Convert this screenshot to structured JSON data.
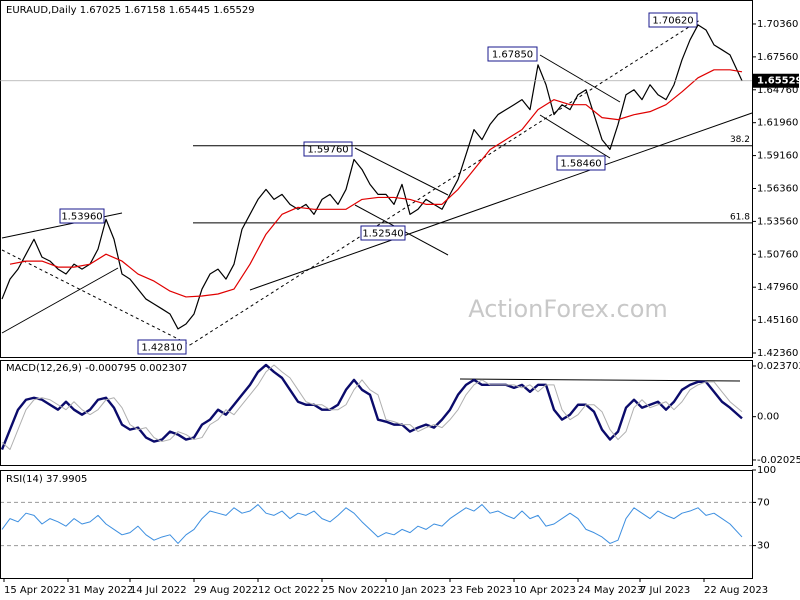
{
  "chart_data": [
    {
      "type": "line",
      "title": "EURAUD,Daily  1.67025 1.67158 1.65445 1.65529",
      "x": [
        0,
        4,
        8,
        12,
        16,
        20,
        24,
        28,
        32,
        36,
        40,
        44,
        48,
        52,
        56,
        60,
        64,
        68,
        72,
        76,
        80,
        84,
        88,
        92,
        96,
        100,
        104,
        108,
        112,
        116,
        120,
        124,
        128,
        132,
        136,
        140,
        144,
        148,
        152,
        156,
        160,
        164,
        168,
        172,
        176,
        180,
        184,
        188,
        192,
        196,
        200,
        204,
        208,
        212,
        216,
        220,
        224,
        228,
        232,
        236,
        240,
        244,
        248,
        252,
        256,
        260,
        264,
        268,
        272,
        276,
        280,
        284,
        288,
        292,
        296,
        300,
        304,
        308,
        312,
        316,
        320,
        324,
        328,
        332,
        336,
        340,
        344,
        348,
        352,
        356,
        360,
        364,
        370
      ],
      "xlim": [
        -1,
        375
      ],
      "ylim": [
        1.4202,
        1.724
      ],
      "yticks": [
        {
          "value": 1.7036,
          "label": "1.70360"
        },
        {
          "value": 1.6756,
          "label": "1.67560"
        },
        {
          "value": 1.6476,
          "label": "1.64760"
        },
        {
          "value": 1.6196,
          "label": "1.61960"
        },
        {
          "value": 1.5916,
          "label": "1.59160"
        },
        {
          "value": 1.5636,
          "label": "1.56360"
        },
        {
          "value": 1.5356,
          "label": "1.53560"
        },
        {
          "value": 1.5076,
          "label": "1.50760"
        },
        {
          "value": 1.4796,
          "label": "1.47960"
        },
        {
          "value": 1.4516,
          "label": "1.45160"
        },
        {
          "value": 1.4236,
          "label": "1.42360"
        }
      ],
      "grid": false,
      "series": [
        {
          "color": "#000000",
          "width": 1.2,
          "values": [
            1.4695,
            1.4865,
            1.495,
            1.5077,
            1.5204,
            1.5052,
            1.5018,
            1.495,
            1.4908,
            1.4992,
            1.495,
            1.4992,
            1.512,
            1.5374,
            1.5204,
            1.4908,
            1.4865,
            1.478,
            1.4695,
            1.4653,
            1.4611,
            1.4568,
            1.4441,
            1.4483,
            1.4568,
            1.478,
            1.4908,
            1.495,
            1.4865,
            1.4992,
            1.5289,
            1.5416,
            1.5543,
            1.5628,
            1.5543,
            1.5586,
            1.5501,
            1.5459,
            1.5501,
            1.5416,
            1.5543,
            1.5586,
            1.5501,
            1.5628,
            1.5883,
            1.5798,
            1.5671,
            1.5586,
            1.5586,
            1.5501,
            1.5671,
            1.5416,
            1.5459,
            1.5543,
            1.5501,
            1.5459,
            1.5586,
            1.5713,
            1.5925,
            1.6137,
            1.6052,
            1.618,
            1.6265,
            1.6307,
            1.6349,
            1.6392,
            1.6307,
            1.6688,
            1.6519,
            1.6265,
            1.6349,
            1.6307,
            1.6434,
            1.6476,
            1.6265,
            1.6052,
            1.5968,
            1.618,
            1.6434,
            1.6476,
            1.6392,
            1.6519,
            1.6434,
            1.6392,
            1.6519,
            1.6731,
            1.69,
            1.7028,
            1.6985,
            1.6858,
            1.6816,
            1.6773,
            1.65529
          ]
        },
        {
          "color": "#e00000",
          "width": 1.2,
          "x": [
            4,
            12,
            20,
            28,
            36,
            44,
            52,
            60,
            68,
            76,
            84,
            92,
            100,
            108,
            116,
            124,
            132,
            140,
            148,
            156,
            164,
            172,
            180,
            188,
            196,
            204,
            212,
            220,
            228,
            236,
            244,
            252,
            260,
            268,
            276,
            284,
            292,
            300,
            308,
            316,
            324,
            332,
            340,
            348,
            356,
            364,
            370
          ],
          "values": [
            1.4992,
            1.5018,
            1.5018,
            1.4967,
            1.4967,
            1.4992,
            1.5077,
            1.5018,
            1.4908,
            1.4848,
            1.4763,
            1.4713,
            1.4721,
            1.4738,
            1.478,
            1.4992,
            1.5247,
            1.5416,
            1.5476,
            1.5459,
            1.5459,
            1.5459,
            1.5543,
            1.556,
            1.556,
            1.5543,
            1.5501,
            1.5501,
            1.5628,
            1.5798,
            1.5967,
            1.6052,
            1.6137,
            1.6307,
            1.6392,
            1.6349,
            1.6349,
            1.6239,
            1.6222,
            1.6264,
            1.629,
            1.6349,
            1.6459,
            1.6578,
            1.6646,
            1.6646,
            1.6629
          ]
        }
      ],
      "annotations": [
        "1.70620",
        "1.67850",
        "1.59760",
        "1.58460",
        "1.53960",
        "1.52540",
        "1.42810"
      ],
      "fib_levels": [
        {
          "label": "38.2",
          "value": 1.6
        },
        {
          "label": "61.8",
          "value": 1.5343
        }
      ],
      "watermark": "ActionForex.com"
    },
    {
      "type": "line",
      "title": "MACD(12,26,9) -0.000795 0.002307",
      "x": [
        0,
        4,
        8,
        12,
        16,
        20,
        24,
        28,
        32,
        36,
        40,
        44,
        48,
        52,
        56,
        60,
        64,
        68,
        72,
        76,
        80,
        84,
        88,
        92,
        96,
        100,
        104,
        108,
        112,
        116,
        120,
        124,
        128,
        132,
        136,
        140,
        144,
        148,
        152,
        156,
        160,
        164,
        168,
        172,
        176,
        180,
        184,
        188,
        192,
        196,
        200,
        204,
        208,
        212,
        216,
        220,
        224,
        228,
        232,
        236,
        240,
        244,
        248,
        252,
        256,
        260,
        264,
        268,
        272,
        276,
        280,
        284,
        288,
        292,
        296,
        300,
        304,
        308,
        312,
        316,
        320,
        324,
        328,
        332,
        336,
        340,
        344,
        348,
        352,
        356,
        360,
        364,
        370
      ],
      "xlim": [
        -1,
        375
      ],
      "ylim": [
        -0.0226,
        0.0265
      ],
      "yticks": [
        0.023703,
        {
          "value": 0,
          "label": "0.00"
        },
        -0.020253
      ],
      "grid": false,
      "series": [
        {
          "color": "#0b0b6b",
          "width": 2.4,
          "values": [
            -0.01535,
            -0.00605,
            0.00326,
            0.00791,
            0.00884,
            0.00791,
            0.00558,
            0.00326,
            0.00698,
            0.00326,
            0.00093,
            0.00326,
            0.00791,
            0.00884,
            0.00419,
            -0.00372,
            -0.00605,
            -0.00512,
            -0.00977,
            -0.01163,
            -0.0107,
            -0.00698,
            -0.00837,
            -0.0107,
            -0.00977,
            -0.00372,
            -0.0014,
            0.00326,
            0.00093,
            0.00558,
            0.01023,
            0.01488,
            0.02093,
            0.02418,
            0.02093,
            0.01814,
            0.01256,
            0.00698,
            0.00558,
            0.00558,
            0.00326,
            0.00326,
            0.00558,
            0.01256,
            0.01721,
            0.01256,
            0.01023,
            -0.0014,
            -0.00233,
            -0.00372,
            -0.00372,
            -0.00698,
            -0.00512,
            -0.00372,
            -0.00512,
            -0.0014,
            0.00326,
            0.01023,
            0.01488,
            0.01721,
            0.01488,
            0.01488,
            0.01488,
            0.01488,
            0.01349,
            0.01488,
            0.01163,
            0.01488,
            0.01488,
            0.00326,
            -0.0014,
            0.00093,
            0.00558,
            0.00558,
            0.00233,
            -0.00605,
            -0.0107,
            -0.00698,
            0.00419,
            0.00791,
            0.00419,
            0.00558,
            0.00698,
            0.00326,
            0.00698,
            0.01256,
            0.01488,
            0.01628,
            0.01628,
            0.01163,
            0.00698,
            0.00419,
            -0.000795
          ]
        },
        {
          "color": "#b0b0b0",
          "width": 1,
          "values": [
            -0.012,
            -0.01535,
            -0.00605,
            0.00326,
            0.00791,
            0.00884,
            0.00791,
            0.00558,
            0.00326,
            0.00698,
            0.00326,
            0.00093,
            0.00326,
            0.00791,
            0.00884,
            0.00419,
            -0.00372,
            -0.00605,
            -0.00512,
            -0.00977,
            -0.01163,
            -0.0107,
            -0.00698,
            -0.00837,
            -0.0107,
            -0.00977,
            -0.00372,
            -0.0014,
            0.00326,
            0.00093,
            0.00558,
            0.01023,
            0.01488,
            0.02093,
            0.02418,
            0.02093,
            0.01814,
            0.01256,
            0.00698,
            0.00558,
            0.00558,
            0.00326,
            0.00326,
            0.00558,
            0.01256,
            0.01721,
            0.01256,
            0.01023,
            -0.0014,
            -0.00233,
            -0.00372,
            -0.00372,
            -0.00698,
            -0.00512,
            -0.00372,
            -0.00512,
            -0.0014,
            0.00326,
            0.01023,
            0.01488,
            0.01721,
            0.01488,
            0.01488,
            0.01488,
            0.01488,
            0.01349,
            0.01488,
            0.01163,
            0.01488,
            0.01488,
            0.00326,
            -0.0014,
            0.00093,
            0.00558,
            0.00558,
            0.00233,
            -0.00605,
            -0.0107,
            -0.00698,
            0.00419,
            0.00791,
            0.00419,
            0.00558,
            0.00698,
            0.00326,
            0.00698,
            0.01256,
            0.01488,
            0.01628,
            0.01628,
            0.01163,
            0.00698,
            0.002307
          ]
        }
      ]
    },
    {
      "type": "line",
      "title": "RSI(14) 37.9905",
      "x": [
        0,
        4,
        8,
        12,
        16,
        20,
        24,
        28,
        32,
        36,
        40,
        44,
        48,
        52,
        56,
        60,
        64,
        68,
        72,
        76,
        80,
        84,
        88,
        92,
        96,
        100,
        104,
        108,
        112,
        116,
        120,
        124,
        128,
        132,
        136,
        140,
        144,
        148,
        152,
        156,
        160,
        164,
        168,
        172,
        176,
        180,
        184,
        188,
        192,
        196,
        200,
        204,
        208,
        212,
        216,
        220,
        224,
        228,
        232,
        236,
        240,
        244,
        248,
        252,
        256,
        260,
        264,
        268,
        272,
        276,
        280,
        284,
        288,
        292,
        296,
        300,
        304,
        308,
        312,
        316,
        320,
        324,
        328,
        332,
        336,
        340,
        344,
        348,
        352,
        356,
        360,
        364,
        370
      ],
      "xlim": [
        -1,
        375
      ],
      "ylim": [
        0,
        100
      ],
      "yticks": [
        100,
        70,
        30
      ],
      "grid": true,
      "xticks": [
        {
          "value": 1,
          "label": "15 Apr 2022"
        },
        {
          "value": 33,
          "label": "31 May 2022"
        },
        {
          "value": 64,
          "label": "14 Jul 2022"
        },
        {
          "value": 96,
          "label": "29 Aug 2022"
        },
        {
          "value": 128,
          "label": "12 Oct 2022"
        },
        {
          "value": 160,
          "label": "25 Nov 2022"
        },
        {
          "value": 192,
          "label": "10 Jan 2023"
        },
        {
          "value": 224,
          "label": "23 Feb 2023"
        },
        {
          "value": 256,
          "label": "10 Apr 2023"
        },
        {
          "value": 288,
          "label": "24 May 2023"
        },
        {
          "value": 319,
          "label": "7 Jul 2023"
        },
        {
          "value": 351,
          "label": "22 Aug 2023"
        }
      ],
      "series": [
        {
          "color": "#3d8fe0",
          "width": 1,
          "values": [
            45,
            55,
            52,
            60,
            58,
            50,
            55,
            52,
            48,
            55,
            50,
            52,
            58,
            50,
            45,
            40,
            42,
            48,
            40,
            35,
            38,
            40,
            32,
            40,
            45,
            55,
            62,
            60,
            58,
            65,
            60,
            62,
            68,
            60,
            58,
            62,
            55,
            60,
            58,
            62,
            55,
            52,
            58,
            65,
            60,
            52,
            45,
            38,
            42,
            40,
            45,
            42,
            48,
            45,
            50,
            48,
            55,
            60,
            65,
            62,
            68,
            60,
            62,
            58,
            55,
            62,
            55,
            58,
            48,
            50,
            55,
            60,
            55,
            45,
            42,
            38,
            32,
            35,
            55,
            65,
            60,
            55,
            62,
            58,
            55,
            60,
            62,
            65,
            58,
            60,
            55,
            50,
            37.9905
          ]
        }
      ]
    }
  ]
}
